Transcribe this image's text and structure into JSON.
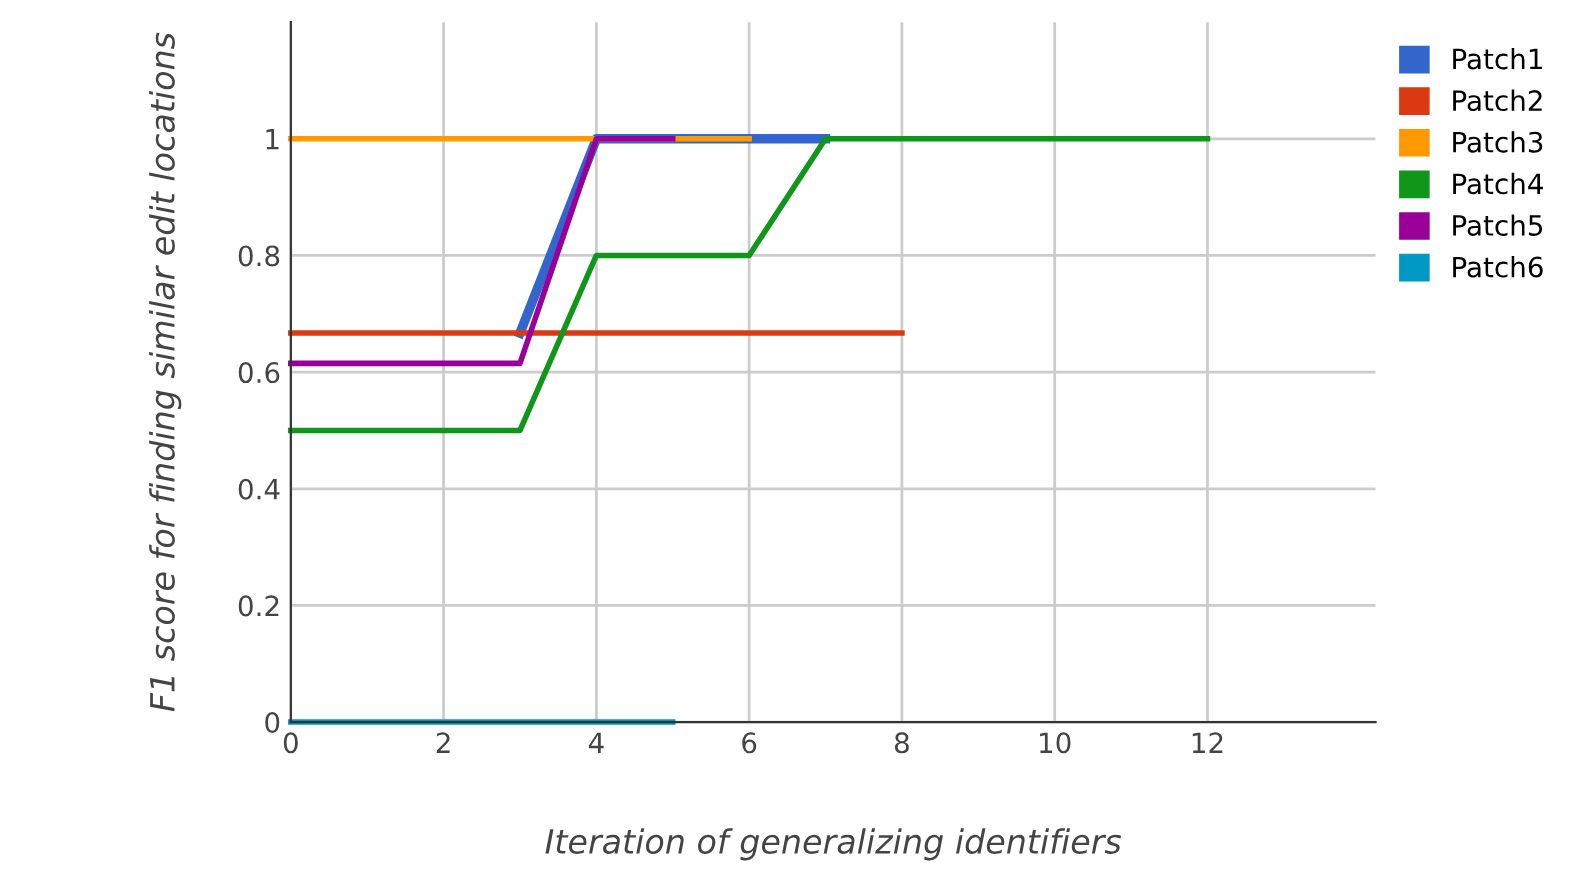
{
  "chart_data": {
    "type": "line",
    "xlabel": "Iteration of generalizing identifiers",
    "ylabel": "F1 score for finding similar edit locations",
    "xlim": [
      0,
      14.2
    ],
    "xticks": [
      0,
      2,
      4,
      6,
      8,
      10,
      12
    ],
    "ylim": [
      0,
      1.2
    ],
    "yticks": [
      0,
      0.2,
      0.4,
      0.6,
      0.8,
      1
    ],
    "grid": true,
    "legend": "right",
    "line_style": "solid",
    "marker": "none",
    "series": [
      {
        "name": "Patch1",
        "color": "#3366cc",
        "x": [
          3,
          4,
          5,
          6,
          7
        ],
        "values": [
          0.667,
          1,
          1,
          1,
          1
        ]
      },
      {
        "name": "Patch2",
        "color": "#dc3912",
        "x": [
          0,
          1,
          2,
          3,
          4,
          5,
          6,
          7,
          8
        ],
        "values": [
          0.667,
          0.667,
          0.667,
          0.667,
          0.667,
          0.667,
          0.667,
          0.667,
          0.667
        ]
      },
      {
        "name": "Patch3",
        "color": "#ff9900",
        "x": [
          0,
          1,
          2,
          3,
          4,
          5,
          6
        ],
        "values": [
          1,
          1,
          1,
          1,
          1,
          1,
          1
        ]
      },
      {
        "name": "Patch4",
        "color": "#109618",
        "x": [
          0,
          1,
          2,
          3,
          4,
          5,
          6,
          7,
          8,
          9,
          10,
          11,
          12
        ],
        "values": [
          0.5,
          0.5,
          0.5,
          0.5,
          0.8,
          0.8,
          0.8,
          1,
          1,
          1,
          1,
          1,
          1
        ]
      },
      {
        "name": "Patch5",
        "color": "#990099",
        "x": [
          0,
          1,
          2,
          3,
          4,
          5
        ],
        "values": [
          0.615,
          0.615,
          0.615,
          0.615,
          1,
          1
        ]
      },
      {
        "name": "Patch6",
        "color": "#0099c6",
        "x": [
          0,
          1,
          2,
          3,
          4,
          5
        ],
        "values": [
          0,
          0,
          0,
          0,
          0,
          0
        ]
      }
    ]
  }
}
